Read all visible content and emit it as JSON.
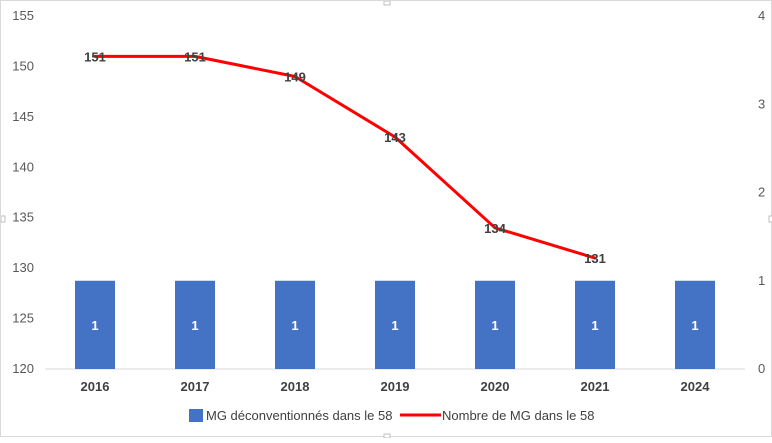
{
  "chart_data": {
    "type": "bar",
    "categories": [
      "2016",
      "2017",
      "2018",
      "2019",
      "2020",
      "2021",
      "2024"
    ],
    "series": [
      {
        "name": "MG déconventionnés dans le 58",
        "kind": "bar",
        "axis": "secondary",
        "color": "#4472C4",
        "values": [
          1,
          1,
          1,
          1,
          1,
          1,
          1
        ],
        "labels": [
          "1",
          "1",
          "1",
          "1",
          "1",
          "1",
          "1"
        ]
      },
      {
        "name": "Nombre de MG dans le 58",
        "kind": "line",
        "axis": "primary",
        "color": "#FF0000",
        "values": [
          151,
          151,
          149,
          143,
          134,
          131,
          null
        ],
        "labels": [
          "151",
          "151",
          "149",
          "143",
          "134",
          "131",
          null
        ]
      }
    ],
    "primary_axis": {
      "ylim": [
        120,
        155
      ],
      "ticks": [
        "120",
        "125",
        "130",
        "135",
        "140",
        "145",
        "150",
        "155"
      ]
    },
    "secondary_axis": {
      "ylim": [
        0,
        4
      ],
      "ticks": [
        "0",
        "1",
        "2",
        "3",
        "4"
      ]
    },
    "title": "",
    "xlabel": "",
    "ylabel": "",
    "grid": false,
    "legend_position": "bottom"
  }
}
